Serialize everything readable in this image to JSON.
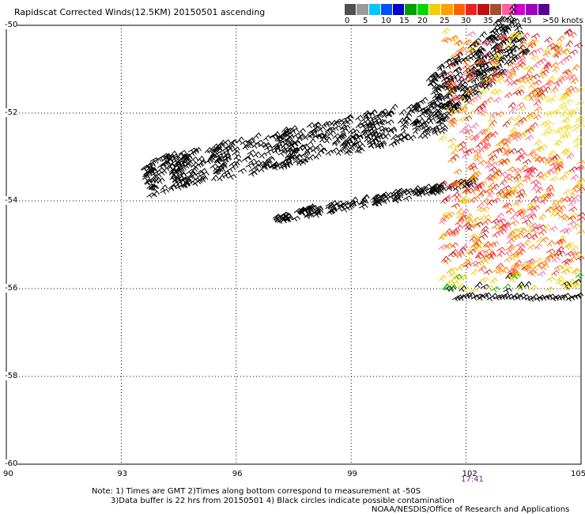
{
  "title": "Rapidscat Corrected Winds(12.5KM) 20150501 ascending",
  "legend": {
    "labels": [
      "0",
      "5",
      "10",
      "15",
      "20",
      "25",
      "30",
      "35",
      "40",
      "45",
      ">50 knots"
    ],
    "colors": [
      "#505050",
      "#9a9a9a",
      "#00c8ff",
      "#0050ff",
      "#0000c8",
      "#00a000",
      "#00d800",
      "#f0d000",
      "#ffa000",
      "#ff6000",
      "#f02020",
      "#c01010",
      "#a05030",
      "#ff60a0",
      "#d000d0",
      "#a000c0",
      "#5a0090"
    ]
  },
  "axes": {
    "lat_labels": [
      "-50",
      "-52",
      "-54",
      "-56",
      "-58",
      "-60"
    ],
    "lon_labels": [
      "90",
      "93",
      "96",
      "99",
      "102",
      "105"
    ]
  },
  "time_label": "17:41",
  "notes": {
    "line1": "Note: 1) Times are GMT 2)Times along bottom correspond to measurement at -50S",
    "line2": "3)Data buffer is 22 hrs from 20150501 4) Black circles indicate possible contamination",
    "line3": "NOAA/NESDIS/Office of Research and Applications"
  },
  "map_data": {
    "lon_range": [
      90,
      105
    ],
    "lat_range": [
      -50,
      -60
    ],
    "gridlines": true,
    "swaths": [
      {
        "region": "western black swath",
        "from_lon": 93.5,
        "to_lon": 100.5,
        "color": "#000000"
      },
      {
        "region": "lower black tail",
        "from_lon": 97,
        "to_lon": 101.5,
        "color": "#000000"
      },
      {
        "region": "northeast black band",
        "from_lon": 100.5,
        "to_lon": 105,
        "color": "#000000"
      },
      {
        "region": "eastern colored block",
        "from_lon": 101.5,
        "to_lon": 105,
        "colors": [
          "#ff7000",
          "#ff3030",
          "#c02020",
          "#ff60a0",
          "#f0d000",
          "#ffa000",
          "#a05030",
          "#00c000"
        ]
      }
    ]
  }
}
